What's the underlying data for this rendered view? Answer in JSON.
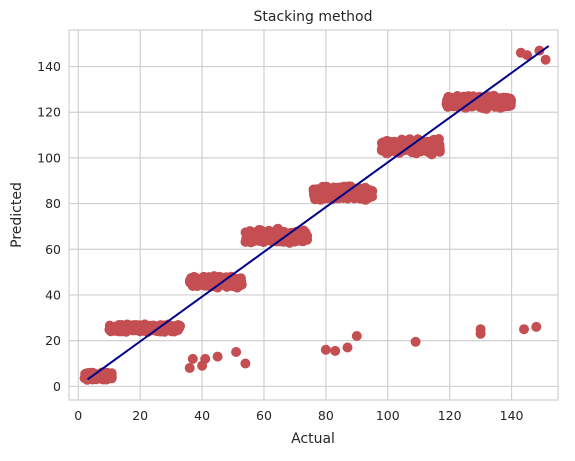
{
  "chart_data": {
    "type": "scatter",
    "title": "Stacking method",
    "xlabel": "Actual",
    "ylabel": "Predicted",
    "xlim": [
      -3,
      155
    ],
    "ylim": [
      -6,
      156
    ],
    "xticks": [
      0,
      20,
      40,
      60,
      80,
      100,
      120,
      140
    ],
    "yticks": [
      0,
      20,
      40,
      60,
      80,
      100,
      120,
      140
    ],
    "grid": true,
    "colors": {
      "points": "#c44e52",
      "fit_line": "#00008b",
      "grid": "#d0d0d0",
      "frame": "#d0d0d0",
      "text": "#262626"
    },
    "clusters": [
      {
        "x_range": [
          2,
          11
        ],
        "y_center": 4.5,
        "y_spread": 2.2
      },
      {
        "x_range": [
          10,
          33
        ],
        "y_center": 25.5,
        "y_spread": 2.0
      },
      {
        "x_range": [
          36,
          53
        ],
        "y_center": 45.5,
        "y_spread": 3.2
      },
      {
        "x_range": [
          54,
          74
        ],
        "y_center": 65.5,
        "y_spread": 4.0
      },
      {
        "x_range": [
          76,
          95
        ],
        "y_center": 84.5,
        "y_spread": 4.0
      },
      {
        "x_range": [
          98,
          117
        ],
        "y_center": 105,
        "y_spread": 4.0
      },
      {
        "x_range": [
          119,
          140
        ],
        "y_center": 124.5,
        "y_spread": 3.5
      }
    ],
    "outliers": [
      [
        36,
        8
      ],
      [
        37,
        12
      ],
      [
        40,
        9
      ],
      [
        41,
        12
      ],
      [
        45,
        13
      ],
      [
        51,
        15
      ],
      [
        54,
        10
      ],
      [
        80,
        16
      ],
      [
        83,
        15.5
      ],
      [
        87,
        17
      ],
      [
        90,
        22
      ],
      [
        109,
        19.5
      ],
      [
        130,
        23
      ],
      [
        130,
        25
      ],
      [
        144,
        25
      ],
      [
        148,
        26
      ],
      [
        143,
        146
      ],
      [
        145,
        145
      ],
      [
        149,
        147
      ],
      [
        151,
        143
      ]
    ],
    "fit_line": {
      "x": [
        3,
        152
      ],
      "y": [
        3,
        149
      ]
    }
  }
}
